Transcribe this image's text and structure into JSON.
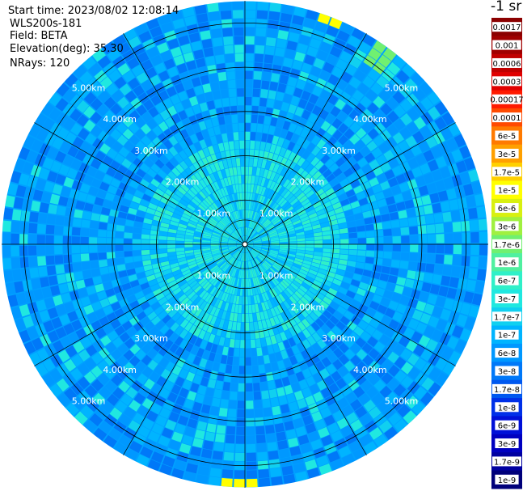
{
  "header": {
    "start_time": "Start time: 2023/08/02 12:08:14",
    "instrument": "WLS200s-181",
    "field": "Field: BETA",
    "elevation": "Elevation(deg): 35.30",
    "nrays": "NRays: 120"
  },
  "colorbar": {
    "unit_label": "-1 sr",
    "ticks": [
      {
        "label": "0.0017",
        "color": "#8b0000"
      },
      {
        "label": "0.001",
        "color": "#a00000"
      },
      {
        "label": "0.0006",
        "color": "#c00000"
      },
      {
        "label": "0.0003",
        "color": "#e00000"
      },
      {
        "label": "0.00017",
        "color": "#ff1a00"
      },
      {
        "label": "0.0001",
        "color": "#ff4a00"
      },
      {
        "label": "6e-5",
        "color": "#ff7a00"
      },
      {
        "label": "3e-5",
        "color": "#ffa000"
      },
      {
        "label": "1.7e-5",
        "color": "#ffd000"
      },
      {
        "label": "1e-5",
        "color": "#ffff00"
      },
      {
        "label": "6e-6",
        "color": "#d8f010"
      },
      {
        "label": "3e-6",
        "color": "#a0f040"
      },
      {
        "label": "1.7e-6",
        "color": "#70f070"
      },
      {
        "label": "1e-6",
        "color": "#50f0a0"
      },
      {
        "label": "6e-7",
        "color": "#30f0c8"
      },
      {
        "label": "3e-7",
        "color": "#20e8e0"
      },
      {
        "label": "1.7e-7",
        "color": "#10d0f0"
      },
      {
        "label": "1e-7",
        "color": "#00b4ff"
      },
      {
        "label": "6e-8",
        "color": "#0098ff"
      },
      {
        "label": "3e-8",
        "color": "#0078f8"
      },
      {
        "label": "1.7e-8",
        "color": "#0058f0"
      },
      {
        "label": "1e-8",
        "color": "#0030e8"
      },
      {
        "label": "6e-9",
        "color": "#0010d8"
      },
      {
        "label": "3e-9",
        "color": "#0000c0"
      },
      {
        "label": "1.7e-9",
        "color": "#0000a0"
      },
      {
        "label": "1e-9",
        "color": "#00007a"
      }
    ]
  },
  "chart_data": {
    "type": "heatmap",
    "projection": "polar-ppi",
    "field": "BETA",
    "elevation_deg": 35.3,
    "n_rays": 120,
    "range_max_km": 5.5,
    "range_rings_km": [
      1,
      2,
      3,
      4,
      5
    ],
    "range_ring_labels": [
      "1.00km",
      "2.00km",
      "3.00km",
      "4.00km",
      "5.00km"
    ],
    "spoke_azimuths_deg": [
      0,
      30,
      60,
      90,
      120,
      150,
      180,
      210,
      240,
      270,
      300,
      330
    ],
    "label_azimuths_deg": [
      45,
      135,
      225,
      315
    ],
    "near_field_value_range": "1e-7 to 3e-7",
    "far_field_value_range": "6e-8 to 1e-7",
    "edge_hotspots": [
      {
        "azimuth_deg": 35,
        "range_km": 5.2,
        "value": "1e-6"
      },
      {
        "azimuth_deg": 20,
        "range_km": 5.5,
        "value": "1e-5"
      },
      {
        "azimuth_deg": 180,
        "range_km": 5.5,
        "value": "1e-5"
      }
    ]
  }
}
